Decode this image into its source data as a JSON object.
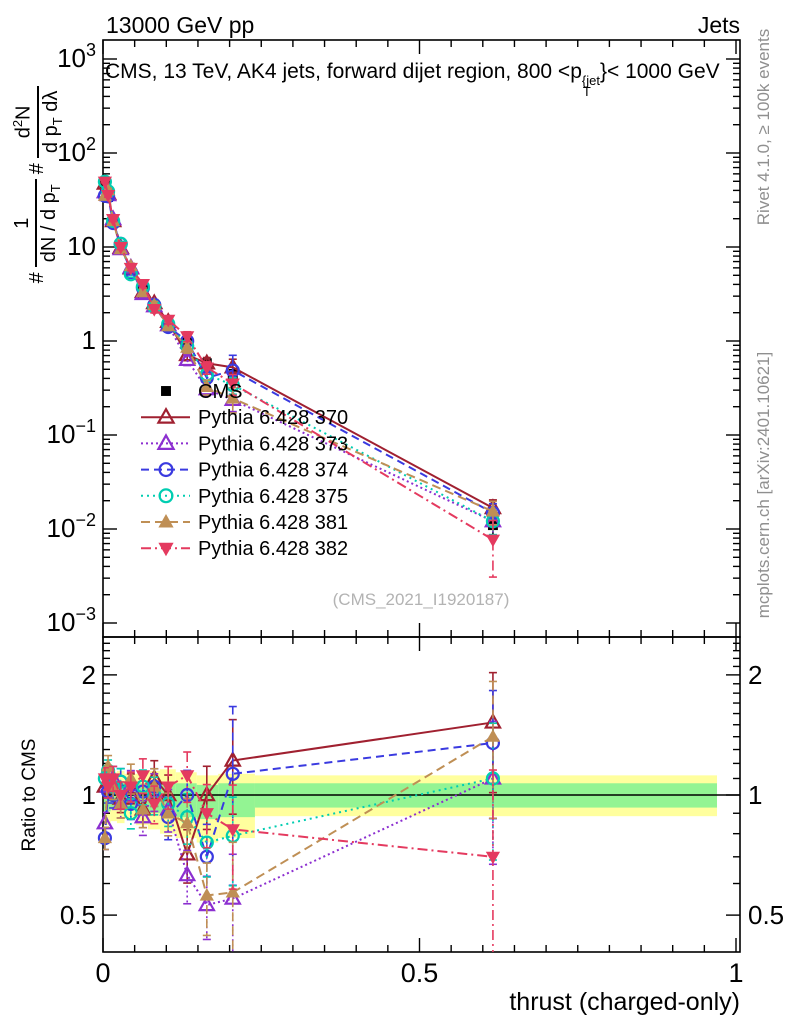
{
  "header": {
    "left": "13000 GeV pp",
    "right": "Jets"
  },
  "title": {
    "pre": "CMS, 13 TeV, AK4 jets, forward dijet region, 800 <p",
    "sup": "{jet",
    "sub": "T",
    "post": "}< 1000 GeV"
  },
  "main_ylabel": {
    "hash1": "#",
    "frac1_num": "1",
    "frac1_den_pre": "dN / d p",
    "frac1_den_sub": "T",
    "hash2": "#",
    "frac2_num_pre": "d",
    "frac2_num_sup": "2",
    "frac2_num_post": "N",
    "frac2_den_pre": "d p",
    "frac2_den_sub": "T",
    "frac2_den_post": " dλ"
  },
  "ratio_ylabel": "Ratio to CMS",
  "side": {
    "rivet": "Rivet 4.1.0, ≥ 100k events",
    "mcplots": "mcplots.cern.ch [arXiv:2401.10621]"
  },
  "watermark": "(CMS_2021_I1920187)",
  "colors": {
    "frame": "#000000",
    "cms": "#000000",
    "band_yellow": "#ffff9e",
    "band_green": "#93f493",
    "gray_text": "#8f8f8f"
  },
  "chart_data": {
    "type": "line",
    "title": "CMS, 13 TeV, AK4 jets, forward dijet region, 800 <p_T^{jet}< 1000 GeV",
    "xlabel": "thrust (charged-only)",
    "ylabel": "1/(dN/dp_T) d^2N/(dp_T dlambda)",
    "ratio_ylabel": "Ratio to CMS",
    "x_range": [
      0,
      1.007
    ],
    "main_y_range": [
      0.001,
      2000
    ],
    "ratio_y_range": [
      0.4,
      2.49
    ],
    "x_ticks": [
      {
        "v": 0,
        "label": "0"
      },
      {
        "v": 0.5,
        "label": "0.5"
      },
      {
        "v": 1,
        "label": "1"
      }
    ],
    "x_minor_step": 0.05,
    "main_y_ticks": [
      {
        "v": 1000,
        "base": "10",
        "exp": "3"
      },
      {
        "v": 100,
        "base": "10",
        "exp": "2"
      },
      {
        "v": 10,
        "base": "10"
      },
      {
        "v": 1,
        "base": "1"
      },
      {
        "v": 0.1,
        "base": "10",
        "exp": "−1"
      },
      {
        "v": 0.01,
        "base": "10",
        "exp": "−2"
      },
      {
        "v": 0.001,
        "base": "10",
        "exp": "−3"
      }
    ],
    "ratio_y_ticks": [
      {
        "v": 2,
        "label": "2"
      },
      {
        "v": 1,
        "label": "1"
      },
      {
        "v": 0.5,
        "label": "0.5"
      }
    ],
    "legend_position": "inside-left-middle",
    "x": [
      0.003,
      0.008,
      0.016,
      0.028,
      0.044,
      0.063,
      0.081,
      0.103,
      0.133,
      0.164,
      0.205,
      0.616
    ],
    "cms": {
      "name": "CMS",
      "marker": "square-filled",
      "color": "#000000",
      "values": [
        45,
        34,
        18,
        10,
        5.7,
        3.6,
        2.3,
        1.6,
        1.0,
        0.58,
        0.43,
        0.011
      ],
      "rel_err": [
        0.04,
        0.04,
        0.04,
        0.05,
        0.05,
        0.06,
        0.06,
        0.07,
        0.08,
        0.1,
        0.15,
        0.25
      ]
    },
    "series": [
      {
        "name": "Pythia 6.428 370",
        "color": "#a02030",
        "dash": "",
        "marker": "triangle-up-open",
        "ratio": [
          1.05,
          1.08,
          1.05,
          0.98,
          1.04,
          0.92,
          1.1,
          1.0,
          0.71,
          1.0,
          1.22,
          1.52
        ],
        "rel_err": [
          0.05,
          0.05,
          0.06,
          0.06,
          0.07,
          0.08,
          0.09,
          0.1,
          0.13,
          0.15,
          0.22,
          0.22
        ]
      },
      {
        "name": "Pythia 6.428 373",
        "color": "#8c2fd0",
        "dash": "2,3",
        "marker": "triangle-up-open",
        "ratio": [
          0.85,
          1.05,
          1.1,
          0.95,
          1.06,
          0.88,
          1.02,
          0.92,
          0.63,
          0.53,
          0.55,
          1.1
        ],
        "rel_err": [
          0.05,
          0.05,
          0.06,
          0.06,
          0.07,
          0.08,
          0.09,
          0.1,
          0.13,
          0.15,
          0.25,
          0.3
        ]
      },
      {
        "name": "Pythia 6.428 374",
        "color": "#3a3ae0",
        "dash": "8,5",
        "marker": "circle-open",
        "ratio": [
          0.78,
          1.02,
          1.0,
          1.08,
          0.95,
          1.02,
          1.05,
          0.88,
          1.0,
          0.7,
          1.13,
          1.35
        ],
        "rel_err": [
          0.05,
          0.05,
          0.06,
          0.06,
          0.07,
          0.08,
          0.09,
          0.1,
          0.13,
          0.18,
          0.45,
          0.25
        ]
      },
      {
        "name": "Pythia 6.428 375",
        "color": "#00cdb1",
        "dash": "2,4",
        "marker": "circle-open",
        "ratio": [
          1.1,
          1.15,
          1.05,
          1.08,
          0.9,
          1.05,
          1.0,
          0.95,
          0.88,
          0.76,
          0.79,
          1.1
        ],
        "rel_err": [
          0.05,
          0.05,
          0.06,
          0.06,
          0.07,
          0.08,
          0.09,
          0.1,
          0.12,
          0.15,
          0.2,
          0.28
        ]
      },
      {
        "name": "Pythia 6.428 381",
        "color": "#bf8f55",
        "dash": "9,5",
        "marker": "triangle-up-filled",
        "ratio": [
          0.78,
          1.18,
          1.05,
          0.95,
          1.1,
          0.92,
          1.05,
          0.9,
          0.85,
          0.56,
          0.57,
          1.4
        ],
        "rel_err": [
          0.05,
          0.05,
          0.06,
          0.06,
          0.07,
          0.08,
          0.09,
          0.1,
          0.13,
          0.18,
          0.3,
          0.28
        ]
      },
      {
        "name": "Pythia 6.428 382",
        "color": "#e43a5f",
        "dash": "10,4,2,4",
        "marker": "triangle-down-filled",
        "ratio": [
          1.1,
          1.05,
          1.1,
          1.0,
          1.05,
          1.12,
          0.95,
          1.05,
          1.12,
          0.9,
          0.82,
          0.7
        ],
        "rel_err": [
          0.05,
          0.05,
          0.06,
          0.06,
          0.07,
          0.08,
          0.09,
          0.1,
          0.12,
          0.15,
          0.25,
          0.6
        ]
      }
    ],
    "bands": [
      {
        "x0": 0.0,
        "x1": 0.012,
        "yellow": [
          0.84,
          1.16
        ],
        "green": [
          0.91,
          1.09
        ]
      },
      {
        "x0": 0.012,
        "x1": 0.022,
        "yellow": [
          0.86,
          1.14
        ],
        "green": [
          0.92,
          1.08
        ]
      },
      {
        "x0": 0.022,
        "x1": 0.034,
        "yellow": [
          0.85,
          1.15
        ],
        "green": [
          0.92,
          1.08
        ]
      },
      {
        "x0": 0.034,
        "x1": 0.052,
        "yellow": [
          0.87,
          1.13
        ],
        "green": [
          0.93,
          1.07
        ]
      },
      {
        "x0": 0.052,
        "x1": 0.071,
        "yellow": [
          0.84,
          1.13
        ],
        "green": [
          0.92,
          1.07
        ]
      },
      {
        "x0": 0.071,
        "x1": 0.09,
        "yellow": [
          0.82,
          1.15
        ],
        "green": [
          0.9,
          1.08
        ]
      },
      {
        "x0": 0.09,
        "x1": 0.115,
        "yellow": [
          0.8,
          1.16
        ],
        "green": [
          0.89,
          1.08
        ]
      },
      {
        "x0": 0.115,
        "x1": 0.148,
        "yellow": [
          0.78,
          1.14
        ],
        "green": [
          0.88,
          1.07
        ]
      },
      {
        "x0": 0.148,
        "x1": 0.182,
        "yellow": [
          0.76,
          1.12
        ],
        "green": [
          0.87,
          1.06
        ]
      },
      {
        "x0": 0.182,
        "x1": 0.24,
        "yellow": [
          0.78,
          1.13
        ],
        "green": [
          0.88,
          1.07
        ]
      },
      {
        "x0": 0.24,
        "x1": 0.97,
        "yellow": [
          0.885,
          1.12
        ],
        "green": [
          0.93,
          1.07
        ]
      }
    ]
  }
}
